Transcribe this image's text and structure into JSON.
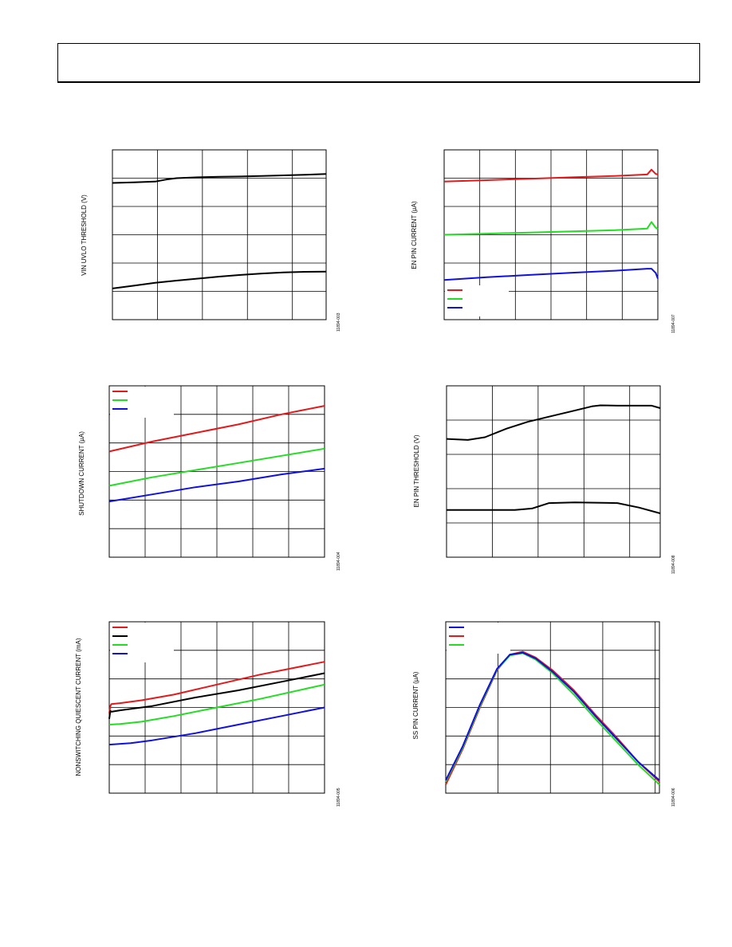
{
  "page": {
    "header_text": ""
  },
  "chart_data": [
    {
      "id": "vin-uvlo",
      "type": "line",
      "ylabel": "VIN UVLO THRESHOLD (V)",
      "xlabel": "",
      "figure_code": "11894-003",
      "grid": true,
      "xlim": [
        0,
        100
      ],
      "ylim": [
        0,
        6
      ],
      "x_grid_fracs": [
        0.2105,
        0.4211,
        0.6316,
        0.8421
      ],
      "y_grid_values": [
        1,
        2,
        3,
        4,
        5
      ],
      "series": [
        {
          "color": "#000000",
          "x": [
            0,
            10,
            20,
            25,
            30,
            40,
            50,
            60,
            70,
            80,
            90,
            100
          ],
          "y": [
            4.83,
            4.85,
            4.88,
            4.95,
            5.0,
            5.03,
            5.05,
            5.06,
            5.08,
            5.1,
            5.12,
            5.15
          ]
        },
        {
          "color": "#000000",
          "x": [
            0,
            10,
            20,
            30,
            40,
            50,
            60,
            70,
            80,
            90,
            100
          ],
          "y": [
            1.1,
            1.2,
            1.3,
            1.38,
            1.45,
            1.52,
            1.58,
            1.63,
            1.67,
            1.69,
            1.7
          ]
        }
      ]
    },
    {
      "id": "en-pin-current",
      "type": "line",
      "ylabel": "EN PIN CURRENT (µA)",
      "xlabel": "",
      "figure_code": "11894-007",
      "grid": true,
      "xlim": [
        0,
        100
      ],
      "ylim": [
        0,
        6
      ],
      "x_grid_fracs": [
        0.1667,
        0.3333,
        0.5,
        0.6667,
        0.8333
      ],
      "y_grid_values": [
        1,
        2,
        3,
        4,
        5
      ],
      "legend": {
        "position": "bottom-left",
        "entries": [
          {
            "color": "#e31a1c",
            "label": ""
          },
          {
            "color": "#22dd22",
            "label": ""
          },
          {
            "color": "#1111dd",
            "label": ""
          }
        ]
      },
      "series": [
        {
          "color": "#e31a1c",
          "x": [
            0,
            20,
            40,
            60,
            80,
            95,
            97,
            99,
            100
          ],
          "y": [
            4.88,
            4.93,
            4.98,
            5.03,
            5.08,
            5.13,
            5.3,
            5.15,
            5.13
          ]
        },
        {
          "color": "#22dd22",
          "x": [
            0,
            20,
            40,
            60,
            80,
            95,
            97,
            99,
            100
          ],
          "y": [
            3.0,
            3.04,
            3.08,
            3.12,
            3.16,
            3.22,
            3.45,
            3.25,
            3.2
          ]
        },
        {
          "color": "#1111dd",
          "x": [
            0,
            20,
            40,
            60,
            80,
            95,
            97,
            99,
            100
          ],
          "y": [
            1.4,
            1.5,
            1.58,
            1.66,
            1.73,
            1.8,
            1.8,
            1.65,
            1.45
          ]
        }
      ]
    },
    {
      "id": "shutdown-current",
      "type": "line",
      "ylabel": "SHUTDOWN CURRENT (µA)",
      "xlabel": "",
      "figure_code": "11894-004",
      "grid": true,
      "xlim": [
        0,
        100
      ],
      "ylim": [
        0,
        6
      ],
      "x_grid_fracs": [
        0.1667,
        0.3333,
        0.5,
        0.6667,
        0.8333
      ],
      "y_grid_values": [
        1,
        2,
        3,
        4,
        5
      ],
      "legend": {
        "position": "top-left",
        "entries": [
          {
            "color": "#e31a1c",
            "label": ""
          },
          {
            "color": "#22dd22",
            "label": ""
          },
          {
            "color": "#1111dd",
            "label": ""
          }
        ]
      },
      "series": [
        {
          "color": "#e31a1c",
          "x": [
            0,
            20,
            40,
            60,
            80,
            100
          ],
          "y": [
            3.7,
            4.05,
            4.35,
            4.65,
            5.0,
            5.3
          ]
        },
        {
          "color": "#22dd22",
          "x": [
            0,
            20,
            40,
            60,
            80,
            100
          ],
          "y": [
            2.5,
            2.8,
            3.05,
            3.3,
            3.55,
            3.8
          ]
        },
        {
          "color": "#1111dd",
          "x": [
            0,
            20,
            40,
            60,
            80,
            100
          ],
          "y": [
            1.95,
            2.2,
            2.45,
            2.65,
            2.9,
            3.1
          ]
        }
      ]
    },
    {
      "id": "en-pin-threshold",
      "type": "line",
      "ylabel": "EN PIN THRESHOLD (V)",
      "xlabel": "",
      "figure_code": "11894-008",
      "grid": true,
      "xlim": [
        0,
        100
      ],
      "ylim": [
        0,
        5
      ],
      "x_grid_fracs": [
        0.2143,
        0.4286,
        0.6429,
        0.8571
      ],
      "y_grid_values": [
        1,
        2,
        3,
        4
      ],
      "series": [
        {
          "color": "#000000",
          "x": [
            0,
            10,
            18,
            28,
            38,
            48,
            58,
            68,
            72,
            80,
            90,
            96,
            100
          ],
          "y": [
            3.45,
            3.42,
            3.5,
            3.75,
            3.95,
            4.1,
            4.25,
            4.4,
            4.43,
            4.42,
            4.42,
            4.42,
            4.35
          ]
        },
        {
          "color": "#000000",
          "x": [
            0,
            20,
            32,
            40,
            48,
            60,
            80,
            90,
            100
          ],
          "y": [
            1.38,
            1.38,
            1.38,
            1.42,
            1.58,
            1.6,
            1.58,
            1.45,
            1.28
          ]
        }
      ]
    },
    {
      "id": "quiescent-current",
      "type": "line",
      "ylabel": "NONSWITCHING QUIESCENT CURRENT (mA)",
      "xlabel": "",
      "figure_code": "11894-005",
      "grid": true,
      "xlim": [
        0,
        100
      ],
      "ylim": [
        0,
        6
      ],
      "x_grid_fracs": [
        0.1667,
        0.3333,
        0.5,
        0.6667,
        0.8333
      ],
      "y_grid_values": [
        1,
        2,
        3,
        4,
        5
      ],
      "legend": {
        "position": "top-left",
        "entries": [
          {
            "color": "#e31a1c",
            "label": ""
          },
          {
            "color": "#000000",
            "label": ""
          },
          {
            "color": "#22dd22",
            "label": ""
          },
          {
            "color": "#1111dd",
            "label": ""
          }
        ]
      },
      "series": [
        {
          "color": "#e31a1c",
          "x": [
            0,
            0.5,
            1,
            5,
            15,
            30,
            50,
            70,
            100
          ],
          "y": [
            2.8,
            3.05,
            3.12,
            3.15,
            3.25,
            3.45,
            3.8,
            4.15,
            4.6
          ]
        },
        {
          "color": "#000000",
          "x": [
            0,
            0.5,
            1,
            5,
            20,
            40,
            60,
            80,
            100
          ],
          "y": [
            2.6,
            2.88,
            2.85,
            2.9,
            3.05,
            3.35,
            3.6,
            3.9,
            4.2
          ]
        },
        {
          "color": "#22dd22",
          "x": [
            0,
            5,
            15,
            30,
            50,
            70,
            100
          ],
          "y": [
            2.4,
            2.42,
            2.5,
            2.7,
            3.0,
            3.3,
            3.8
          ]
        },
        {
          "color": "#1111dd",
          "x": [
            0,
            10,
            20,
            40,
            60,
            80,
            100
          ],
          "y": [
            1.7,
            1.75,
            1.85,
            2.1,
            2.4,
            2.7,
            3.0
          ]
        }
      ]
    },
    {
      "id": "ss-pin-current",
      "type": "line",
      "ylabel": "SS PIN CURRENT (µA)",
      "xlabel": "",
      "figure_code": "11894-006",
      "grid": true,
      "xlim": [
        0,
        100
      ],
      "ylim": [
        0,
        6
      ],
      "x_grid_fracs": [
        0.2449,
        0.4898,
        0.7347,
        0.98
      ],
      "y_grid_values": [
        1,
        2,
        3,
        4,
        5
      ],
      "legend": {
        "position": "top-left",
        "entries": [
          {
            "color": "#1111dd",
            "label": ""
          },
          {
            "color": "#e31a1c",
            "label": ""
          },
          {
            "color": "#22dd22",
            "label": ""
          }
        ]
      },
      "series": [
        {
          "color": "#e31a1c",
          "x": [
            0,
            8,
            16,
            24,
            30,
            36,
            42,
            50,
            60,
            70,
            80,
            90,
            100
          ],
          "y": [
            0.3,
            1.55,
            3.0,
            4.3,
            4.85,
            4.95,
            4.75,
            4.3,
            3.6,
            2.75,
            1.95,
            1.1,
            0.4
          ]
        },
        {
          "color": "#22dd22",
          "x": [
            0,
            8,
            16,
            24,
            30,
            36,
            42,
            50,
            60,
            70,
            80,
            90,
            100
          ],
          "y": [
            0.4,
            1.6,
            3.05,
            4.32,
            4.82,
            4.9,
            4.68,
            4.2,
            3.45,
            2.6,
            1.8,
            1.0,
            0.3
          ]
        },
        {
          "color": "#1111dd",
          "x": [
            0,
            8,
            16,
            24,
            30,
            36,
            42,
            50,
            60,
            70,
            80,
            90,
            100
          ],
          "y": [
            0.45,
            1.65,
            3.1,
            4.35,
            4.85,
            4.92,
            4.72,
            4.25,
            3.55,
            2.7,
            1.9,
            1.1,
            0.45
          ]
        }
      ]
    }
  ]
}
